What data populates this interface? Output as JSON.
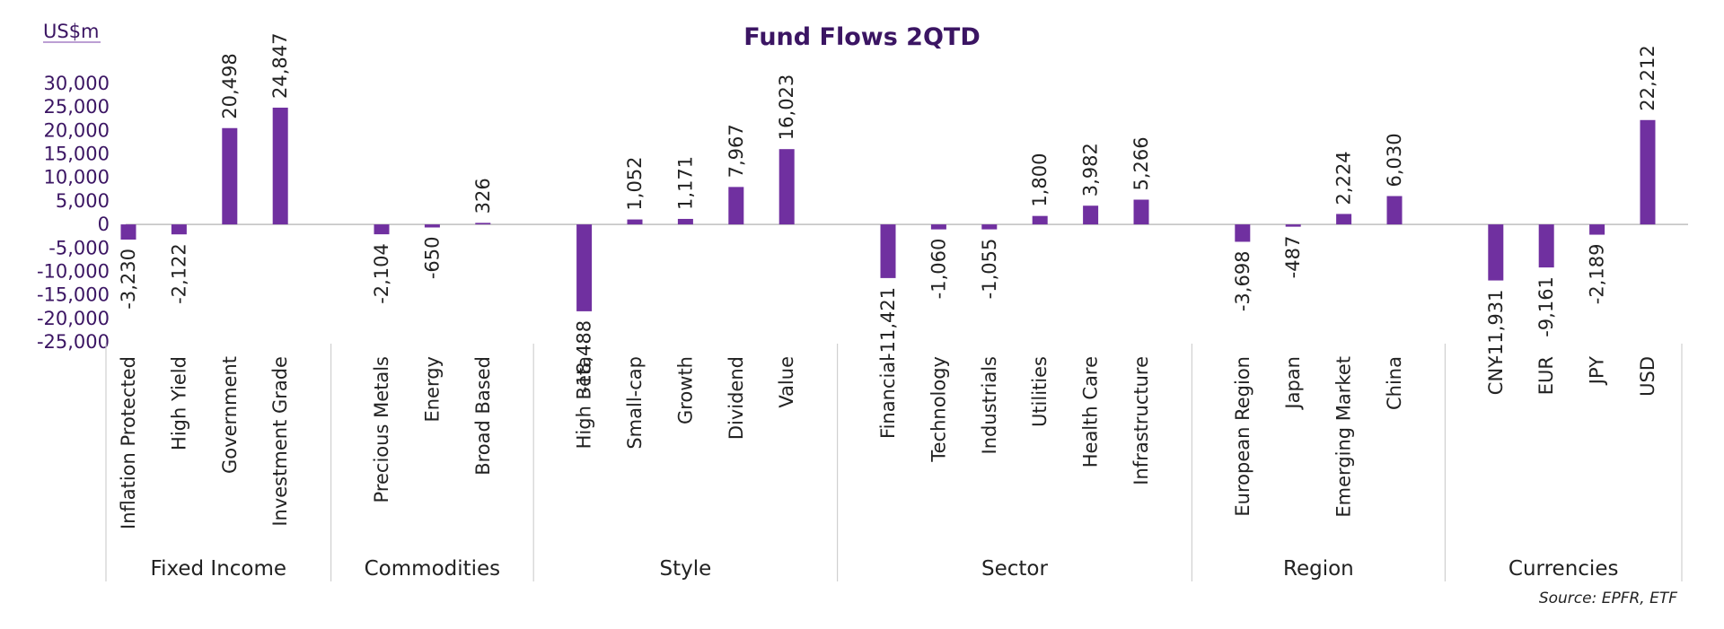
{
  "chart_data": {
    "type": "bar",
    "title": "Fund Flows 2QTD",
    "unit_label": "US$m",
    "source": "Source: EPFR, ETF",
    "ylim": [
      -25000,
      30000
    ],
    "yticks": [
      "30,000",
      "25,000",
      "20,000",
      "15,000",
      "10,000",
      "5,000",
      "0",
      "-5,000",
      "-10,000",
      "-15,000",
      "-20,000",
      "-25,000"
    ],
    "bar_color": "#7030a0",
    "groups": [
      {
        "name": "Fixed Income",
        "categories": [
          "Inflation Protected",
          "High Yield",
          "Government",
          "Investment Grade"
        ],
        "values": [
          -3230,
          -2122,
          20498,
          24847
        ],
        "labels": [
          "-3,230",
          "-2,122",
          "20,498",
          "24,847"
        ]
      },
      {
        "name": "Commodities",
        "categories": [
          "Precious Metals",
          "Energy",
          "Broad Based"
        ],
        "values": [
          -2104,
          -650,
          326
        ],
        "labels": [
          "-2,104",
          "-650",
          "326"
        ]
      },
      {
        "name": "Style",
        "categories": [
          "High Beta",
          "Small-cap",
          "Growth",
          "Dividend",
          "Value"
        ],
        "values": [
          -18488,
          1052,
          1171,
          7967,
          16023
        ],
        "labels": [
          "-18,488",
          "1,052",
          "1,171",
          "7,967",
          "16,023"
        ]
      },
      {
        "name": "Sector",
        "categories": [
          "Financial",
          "Technology",
          "Industrials",
          "Utilities",
          "Health Care",
          "Infrastructure"
        ],
        "values": [
          -11421,
          -1060,
          -1055,
          1800,
          3982,
          5266
        ],
        "labels": [
          "-11,421",
          "-1,060",
          "-1,055",
          "1,800",
          "3,982",
          "5,266"
        ]
      },
      {
        "name": "Region",
        "categories": [
          "European Region",
          "Japan",
          "Emerging Market",
          "China"
        ],
        "values": [
          -3698,
          -487,
          2224,
          6030
        ],
        "labels": [
          "-3,698",
          "-487",
          "2,224",
          "6,030"
        ]
      },
      {
        "name": "Currencies",
        "categories": [
          "CNY",
          "EUR",
          "JPY",
          "USD"
        ],
        "values": [
          -11931,
          -9161,
          -2189,
          22212
        ],
        "labels": [
          "-11,931",
          "-9,161",
          "-2,189",
          "22,212"
        ]
      }
    ]
  }
}
